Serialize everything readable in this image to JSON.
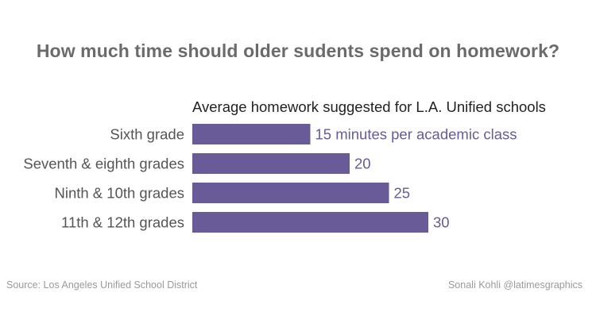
{
  "title": "How much time should older sudents spend on homework?",
  "chart_data": {
    "type": "bar",
    "orientation": "horizontal",
    "subtitle": "Average homework suggested for L.A. Unified schools",
    "categories": [
      "Sixth grade",
      "Seventh & eighth grades",
      "Ninth & 10th grades",
      "11th & 12th grades"
    ],
    "values": [
      15,
      20,
      25,
      30
    ],
    "value_labels": [
      "15 minutes per academic class",
      "20",
      "25",
      "30"
    ],
    "xlim": [
      0,
      30
    ],
    "grid": false,
    "bar_color": "#685b97",
    "label_color": "#685b97"
  },
  "footer": {
    "source": "Source: Los Angeles Unified School District",
    "credit": "Sonali Kohli @latimesgraphics"
  }
}
